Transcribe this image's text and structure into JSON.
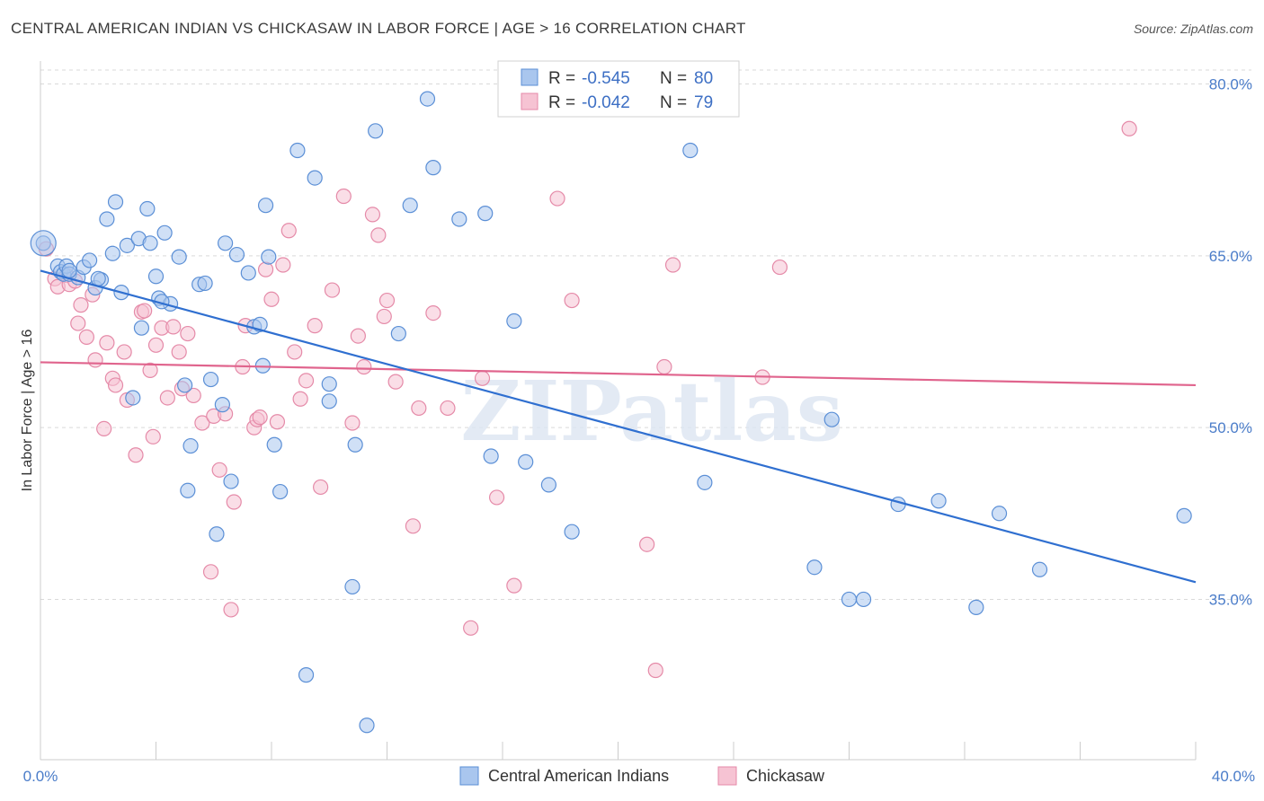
{
  "header": {
    "title": "CENTRAL AMERICAN INDIAN VS CHICKASAW IN LABOR FORCE | AGE > 16 CORRELATION CHART",
    "source": "Source: ZipAtlas.com"
  },
  "watermark": "ZIPatlas",
  "stats_box": {
    "rows": [
      {
        "r_label": "R =",
        "r_value": "-0.545",
        "n_label": "N =",
        "n_value": "80"
      },
      {
        "r_label": "R =",
        "r_value": "-0.042",
        "n_label": "N =",
        "n_value": "79"
      }
    ]
  },
  "legend": {
    "items": [
      {
        "label": "Central American Indians"
      },
      {
        "label": "Chickasaw"
      }
    ]
  },
  "chart_data": {
    "type": "scatter",
    "ylabel": "In Labor Force | Age > 16",
    "xlim": [
      0,
      40
    ],
    "ylim": [
      21,
      82
    ],
    "x_tick_labels": [
      "0.0%",
      "40.0%"
    ],
    "y_ticks": [
      80,
      65,
      50,
      35
    ],
    "y_tick_labels": [
      "80.0%",
      "65.0%",
      "50.0%",
      "35.0%"
    ],
    "grid": true,
    "legend_position": "bottom-center",
    "colors": {
      "series1_fill": "#a9c6ee",
      "series1_stroke": "#5b8fd6",
      "series1_line": "#2f6fd0",
      "series2_fill": "#f6c3d3",
      "series2_stroke": "#e58aa8",
      "series2_line": "#e0648d",
      "tick_label": "#4a7cc9",
      "grid": "#d9d9d9"
    },
    "series": [
      {
        "name": "Central American Indians",
        "trend": {
          "x1": 0,
          "y1": 63.7,
          "x2": 40,
          "y2": 36.5
        },
        "points": [
          [
            0.1,
            66.1
          ],
          [
            0.6,
            64.1
          ],
          [
            0.7,
            63.6
          ],
          [
            0.8,
            63.4
          ],
          [
            0.9,
            64.1
          ],
          [
            1.0,
            63.4
          ],
          [
            1.3,
            63.1
          ],
          [
            1.5,
            64.0
          ],
          [
            1.7,
            64.6
          ],
          [
            1.9,
            62.2
          ],
          [
            2.1,
            62.9
          ],
          [
            2.3,
            68.2
          ],
          [
            2.5,
            65.2
          ],
          [
            2.6,
            69.7
          ],
          [
            2.8,
            61.8
          ],
          [
            3.0,
            65.9
          ],
          [
            3.2,
            52.6
          ],
          [
            3.4,
            66.5
          ],
          [
            3.5,
            58.7
          ],
          [
            3.7,
            69.1
          ],
          [
            3.8,
            66.1
          ],
          [
            4.0,
            63.2
          ],
          [
            4.1,
            61.3
          ],
          [
            4.3,
            67.0
          ],
          [
            4.5,
            60.8
          ],
          [
            4.8,
            64.9
          ],
          [
            5.0,
            53.7
          ],
          [
            5.1,
            44.5
          ],
          [
            5.2,
            48.4
          ],
          [
            5.5,
            62.5
          ],
          [
            5.7,
            62.6
          ],
          [
            5.9,
            54.2
          ],
          [
            6.1,
            40.7
          ],
          [
            6.3,
            52.0
          ],
          [
            6.4,
            66.1
          ],
          [
            6.6,
            45.3
          ],
          [
            6.8,
            65.1
          ],
          [
            7.2,
            63.5
          ],
          [
            7.4,
            58.8
          ],
          [
            7.6,
            59.0
          ],
          [
            7.7,
            55.4
          ],
          [
            7.8,
            69.4
          ],
          [
            7.9,
            64.9
          ],
          [
            8.1,
            48.5
          ],
          [
            8.3,
            44.4
          ],
          [
            8.9,
            74.2
          ],
          [
            9.2,
            28.4
          ],
          [
            9.5,
            71.8
          ],
          [
            10.0,
            53.8
          ],
          [
            10.0,
            52.3
          ],
          [
            10.8,
            36.1
          ],
          [
            10.9,
            48.5
          ],
          [
            11.3,
            24.0
          ],
          [
            11.6,
            75.9
          ],
          [
            12.4,
            58.2
          ],
          [
            12.8,
            69.4
          ],
          [
            13.4,
            78.7
          ],
          [
            13.6,
            72.7
          ],
          [
            14.5,
            68.2
          ],
          [
            15.4,
            68.7
          ],
          [
            15.6,
            47.5
          ],
          [
            16.4,
            59.3
          ],
          [
            16.8,
            47.0
          ],
          [
            17.6,
            45.0
          ],
          [
            18.4,
            40.9
          ],
          [
            22.5,
            74.2
          ],
          [
            23.0,
            45.2
          ],
          [
            26.8,
            37.8
          ],
          [
            27.4,
            50.7
          ],
          [
            28.0,
            35.0
          ],
          [
            28.5,
            35.0
          ],
          [
            29.7,
            43.3
          ],
          [
            31.1,
            43.6
          ],
          [
            32.4,
            34.3
          ],
          [
            33.2,
            42.5
          ],
          [
            34.6,
            37.6
          ],
          [
            39.6,
            42.3
          ],
          [
            1.0,
            63.7
          ],
          [
            2.0,
            63.0
          ],
          [
            4.2,
            61.0
          ]
        ]
      },
      {
        "name": "Chickasaw",
        "trend": {
          "x1": 0,
          "y1": 55.7,
          "x2": 40,
          "y2": 53.7
        },
        "points": [
          [
            0.2,
            65.6
          ],
          [
            0.5,
            63.0
          ],
          [
            0.6,
            62.3
          ],
          [
            0.9,
            63.3
          ],
          [
            1.0,
            62.5
          ],
          [
            1.2,
            62.8
          ],
          [
            1.3,
            59.1
          ],
          [
            1.4,
            60.7
          ],
          [
            1.6,
            57.9
          ],
          [
            1.8,
            61.6
          ],
          [
            1.9,
            55.9
          ],
          [
            2.2,
            49.9
          ],
          [
            2.3,
            57.4
          ],
          [
            2.5,
            54.3
          ],
          [
            2.6,
            53.7
          ],
          [
            2.9,
            56.6
          ],
          [
            3.0,
            52.4
          ],
          [
            3.3,
            47.6
          ],
          [
            3.5,
            60.1
          ],
          [
            3.6,
            60.2
          ],
          [
            3.8,
            55.0
          ],
          [
            3.9,
            49.2
          ],
          [
            4.0,
            57.2
          ],
          [
            4.2,
            58.7
          ],
          [
            4.4,
            52.6
          ],
          [
            4.6,
            58.8
          ],
          [
            4.8,
            56.6
          ],
          [
            4.9,
            53.4
          ],
          [
            5.1,
            58.2
          ],
          [
            5.3,
            52.8
          ],
          [
            5.6,
            50.4
          ],
          [
            5.9,
            37.4
          ],
          [
            6.0,
            51.0
          ],
          [
            6.2,
            46.3
          ],
          [
            6.4,
            51.2
          ],
          [
            6.6,
            34.1
          ],
          [
            6.7,
            43.5
          ],
          [
            7.0,
            55.3
          ],
          [
            7.1,
            58.9
          ],
          [
            7.4,
            50.0
          ],
          [
            7.5,
            50.7
          ],
          [
            7.6,
            50.9
          ],
          [
            7.8,
            63.8
          ],
          [
            8.0,
            61.2
          ],
          [
            8.2,
            50.5
          ],
          [
            8.4,
            64.2
          ],
          [
            8.6,
            67.2
          ],
          [
            8.8,
            56.6
          ],
          [
            9.0,
            52.5
          ],
          [
            9.2,
            54.1
          ],
          [
            9.5,
            58.9
          ],
          [
            9.7,
            44.8
          ],
          [
            10.1,
            62.0
          ],
          [
            10.5,
            70.2
          ],
          [
            10.8,
            50.4
          ],
          [
            11.0,
            58.0
          ],
          [
            11.2,
            55.3
          ],
          [
            11.5,
            68.6
          ],
          [
            11.7,
            66.8
          ],
          [
            11.9,
            59.7
          ],
          [
            12.0,
            61.1
          ],
          [
            12.3,
            54.0
          ],
          [
            12.9,
            41.4
          ],
          [
            13.1,
            51.7
          ],
          [
            13.6,
            60.0
          ],
          [
            14.1,
            51.7
          ],
          [
            14.9,
            32.5
          ],
          [
            15.3,
            54.3
          ],
          [
            15.8,
            43.9
          ],
          [
            16.4,
            36.2
          ],
          [
            17.9,
            70.0
          ],
          [
            18.4,
            61.1
          ],
          [
            21.0,
            39.8
          ],
          [
            21.3,
            28.8
          ],
          [
            21.6,
            55.3
          ],
          [
            21.9,
            64.2
          ],
          [
            25.0,
            54.4
          ],
          [
            25.6,
            64.0
          ],
          [
            37.7,
            76.1
          ]
        ]
      }
    ]
  }
}
